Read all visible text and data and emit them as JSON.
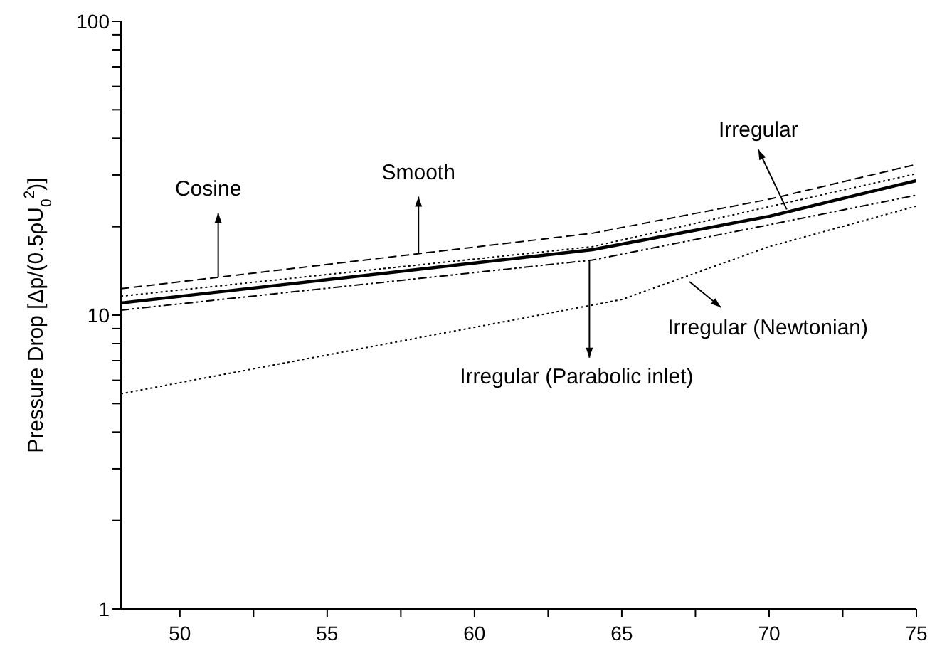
{
  "chart_data": {
    "type": "line",
    "ylabel": "Pressure Drop [Δp/(0.5ρU$_{0}$$^{2}$)]",
    "log": "y",
    "xlim": [
      48,
      75
    ],
    "ylim": [
      1,
      100
    ],
    "xticks": [
      50,
      {
        "value": 52.5,
        "label": null
      },
      55,
      {
        "value": 57.5,
        "label": null
      },
      60,
      {
        "value": 62.5,
        "label": null
      },
      65,
      {
        "value": 67.5,
        "label": null
      },
      70,
      {
        "value": 72.5,
        "label": null
      },
      75
    ],
    "yticks": [
      1,
      {
        "value": 2,
        "label": null
      },
      {
        "value": 3,
        "label": null
      },
      {
        "value": 4,
        "label": null
      },
      {
        "value": 5,
        "label": null
      },
      {
        "value": 6,
        "label": null
      },
      {
        "value": 7,
        "label": null
      },
      {
        "value": 8,
        "label": null
      },
      {
        "value": 9,
        "label": null
      },
      10,
      {
        "value": 20,
        "label": null
      },
      {
        "value": 30,
        "label": null
      },
      {
        "value": 40,
        "label": null
      },
      {
        "value": 50,
        "label": null
      },
      {
        "value": 60,
        "label": null
      },
      {
        "value": 70,
        "label": null
      },
      {
        "value": 80,
        "label": null
      },
      {
        "value": 90,
        "label": null
      },
      100
    ],
    "marker": "none",
    "annotations": [
      {
        "text": "Cosine",
        "x": 51.3,
        "y": 13.5
      },
      {
        "text": "Irregular",
        "x": 70.6,
        "y": 22.9
      },
      {
        "text": "Smooth",
        "x": 58.1,
        "y": 16.2
      },
      {
        "text": "Irregular (Parabolic inlet)",
        "x": 63.9,
        "y": 15.3
      },
      {
        "text": "Irregular (Newtonian)",
        "x": 67.3,
        "y": 13
      }
    ],
    "series": [
      {
        "color": "#000000",
        "line_style": "dashed",
        "x": [
          48,
          64,
          70,
          75
        ],
        "values": [
          12.3,
          19,
          24.8,
          32.6
        ]
      },
      {
        "color": "#000000",
        "line_style": "dotted",
        "x": [
          48,
          64,
          70,
          75
        ],
        "values": [
          11.6,
          17.1,
          23.4,
          30.3
        ]
      },
      {
        "color": "#000000",
        "line_style": "solid",
        "x": [
          48,
          64,
          70,
          75
        ],
        "values": [
          11,
          16.7,
          21.7,
          28.7
        ]
      },
      {
        "color": "#000000",
        "line_style": "dashdot",
        "x": [
          48,
          64,
          70,
          75
        ],
        "values": [
          10.4,
          15.4,
          20.3,
          25.6
        ]
      },
      {
        "color": "#000000",
        "line_style": "dotted",
        "x": [
          48,
          65,
          70,
          75
        ],
        "values": [
          5.4,
          11.3,
          17.1,
          23.5
        ]
      }
    ]
  }
}
